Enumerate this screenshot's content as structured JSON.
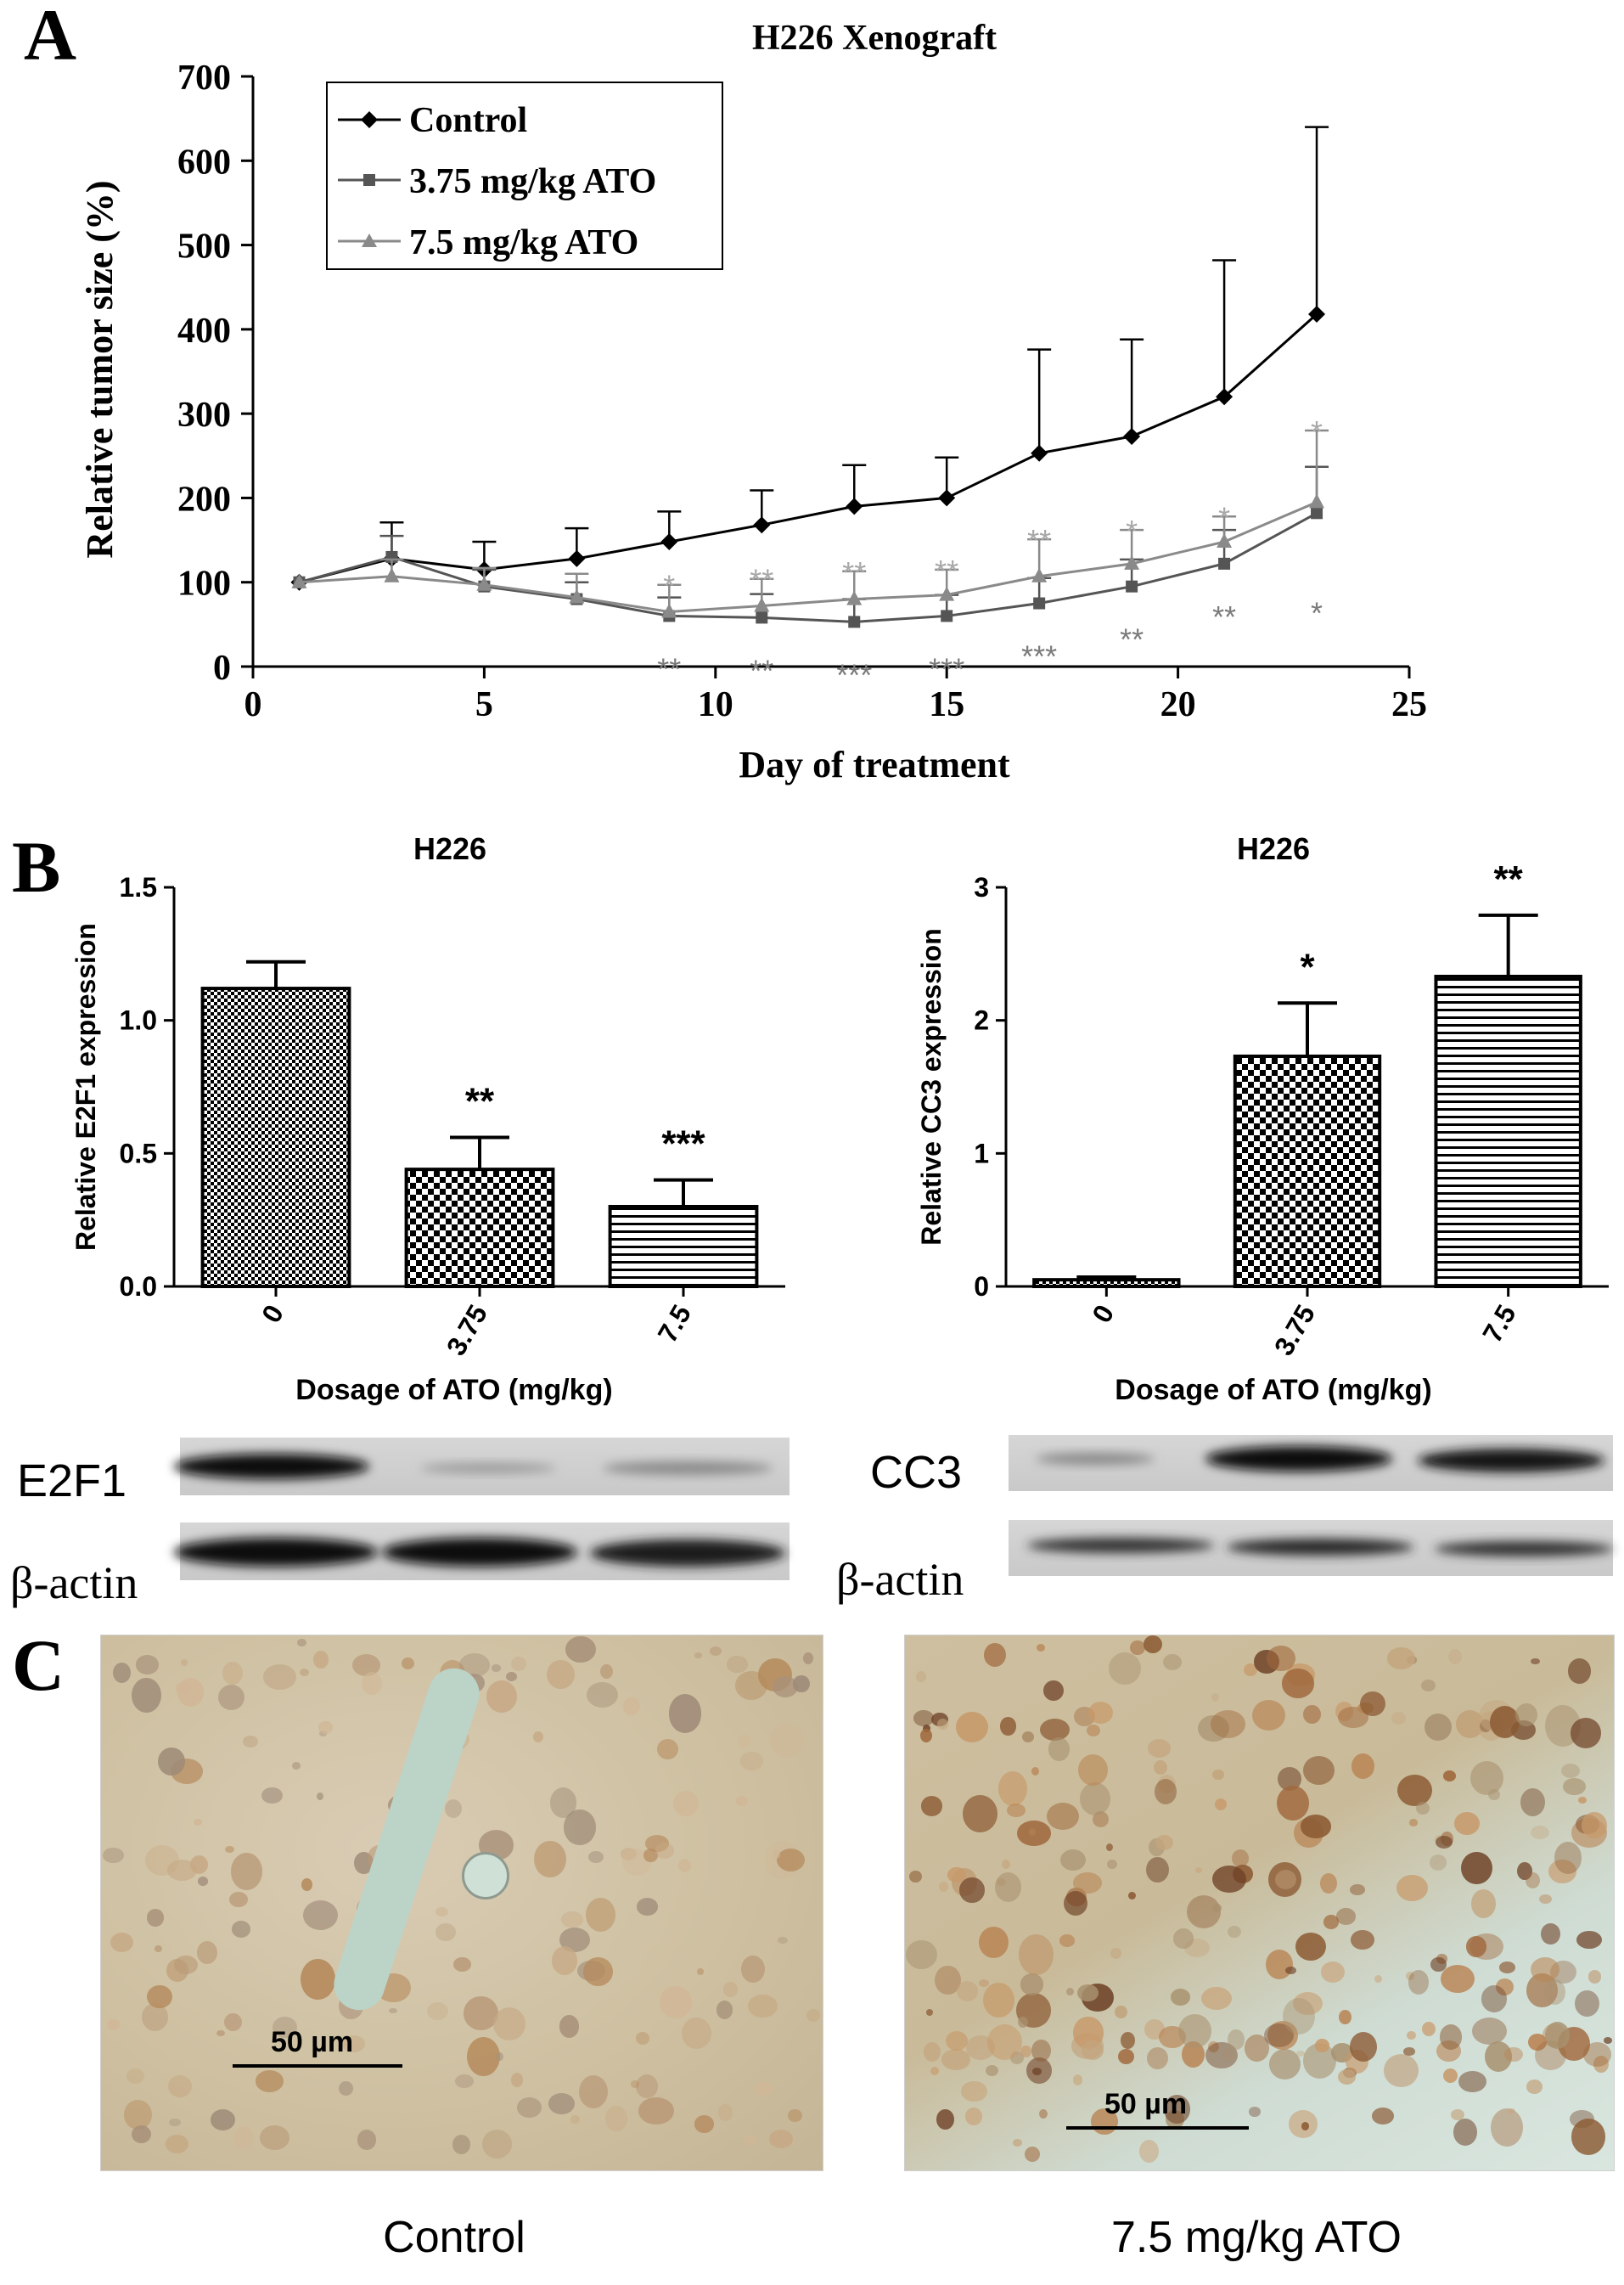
{
  "panels": {
    "a": "A",
    "b": "B",
    "c": "C"
  },
  "chart_data": [
    {
      "type": "line",
      "title": "H226 Xenograft",
      "xlabel": "Day of treatment",
      "ylabel": "Relative tumor size (%)",
      "xlim": [
        0,
        25
      ],
      "ylim": [
        0,
        700
      ],
      "xticks": [
        0,
        5,
        10,
        15,
        20,
        25
      ],
      "yticks": [
        0,
        100,
        200,
        300,
        400,
        500,
        600,
        700
      ],
      "legend_position": "top-left",
      "series": [
        {
          "name": "Control",
          "marker": "diamond",
          "color": "#000000",
          "x": [
            1,
            3,
            5,
            7,
            9,
            11,
            13,
            15,
            17,
            19,
            21,
            23
          ],
          "y": [
            100,
            128,
            115,
            128,
            148,
            168,
            190,
            200,
            253,
            273,
            320,
            418
          ],
          "error": [
            0,
            43,
            33,
            36,
            36,
            41,
            49,
            48,
            123,
            115,
            162,
            222
          ],
          "significance": [
            "",
            "",
            "",
            "",
            "",
            "",
            "",
            "",
            "",
            "",
            "",
            ""
          ]
        },
        {
          "name": "3.75 mg/kg ATO",
          "marker": "square",
          "color": "#555555",
          "x": [
            1,
            3,
            5,
            7,
            9,
            11,
            13,
            15,
            17,
            19,
            21,
            23
          ],
          "y": [
            100,
            130,
            95,
            80,
            60,
            58,
            53,
            60,
            75,
            95,
            122,
            182
          ],
          "error": [
            0,
            25,
            20,
            20,
            22,
            28,
            27,
            25,
            30,
            32,
            40,
            55
          ],
          "significance": [
            "",
            "",
            "",
            "",
            "**",
            "**",
            "***",
            "***",
            "***",
            "**",
            "**",
            "*"
          ]
        },
        {
          "name": "7.5 mg/kg ATO",
          "marker": "triangle",
          "color": "#8a8a8a",
          "x": [
            1,
            3,
            5,
            7,
            9,
            11,
            13,
            15,
            17,
            19,
            21,
            23
          ],
          "y": [
            100,
            107,
            97,
            82,
            65,
            72,
            80,
            85,
            107,
            122,
            148,
            195
          ],
          "error": [
            0,
            20,
            20,
            28,
            32,
            32,
            33,
            30,
            44,
            40,
            30,
            85
          ],
          "significance": [
            "",
            "",
            "",
            "",
            "*",
            "**",
            "**",
            "**",
            "**",
            "*",
            "*",
            "*"
          ]
        }
      ]
    },
    {
      "type": "bar",
      "title": "H226",
      "xlabel": "Dosage of ATO (mg/kg)",
      "ylabel": "Relative E2F1 expression",
      "categories": [
        "0",
        "3.75",
        "7.5"
      ],
      "values": [
        1.12,
        0.44,
        0.3
      ],
      "error": [
        0.1,
        0.12,
        0.1
      ],
      "significance": [
        "",
        "**",
        "***"
      ],
      "patterns": [
        "checker-fine",
        "checker-coarse",
        "horizontal-lines"
      ],
      "ylim": [
        0,
        1.5
      ],
      "yticks": [
        "0.0",
        "0.5",
        "1.0",
        "1.5"
      ]
    },
    {
      "type": "bar",
      "title": "H226",
      "xlabel": "Dosage of ATO (mg/kg)",
      "ylabel": "Relative CC3 expression",
      "categories": [
        "0",
        "3.75",
        "7.5"
      ],
      "values": [
        0.05,
        1.73,
        2.33
      ],
      "error": [
        0.02,
        0.4,
        0.46
      ],
      "significance": [
        "",
        "*",
        "**"
      ],
      "patterns": [
        "checker-fine",
        "checker-coarse",
        "horizontal-lines"
      ],
      "ylim": [
        0,
        3
      ],
      "yticks": [
        "0",
        "1",
        "2",
        "3"
      ]
    }
  ],
  "blots": {
    "left": {
      "target": "E2F1",
      "loading": "β-actin"
    },
    "right": {
      "target": "CC3",
      "loading": "β-actin"
    }
  },
  "micrographs": {
    "left": {
      "caption": "Control",
      "scale_label": "50 µm"
    },
    "right": {
      "caption": "7.5 mg/kg ATO",
      "scale_label": "50 µm"
    }
  }
}
